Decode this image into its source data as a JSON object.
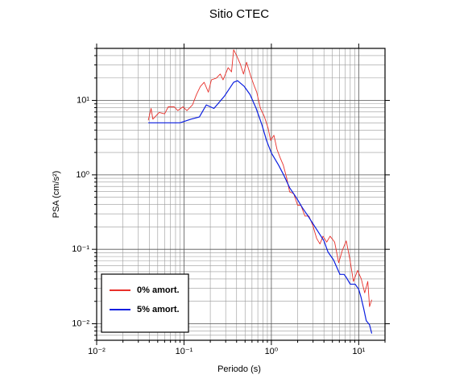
{
  "chart_data": {
    "type": "line",
    "title": "Sitio CTEC",
    "x_label": "Periodo (s)",
    "y_label": "PSA (cm/s²)",
    "xscale": "log",
    "yscale": "log",
    "grid": true,
    "legend": "lower left",
    "xlim": [
      0.01,
      20
    ],
    "ylim": [
      0.006,
      50
    ],
    "xticks": [
      {
        "value": 0.01,
        "label": "10⁻²"
      },
      {
        "value": 0.1,
        "label": "10⁻¹"
      },
      {
        "value": 1,
        "label": "10⁰"
      },
      {
        "value": 10,
        "label": "10¹"
      }
    ],
    "yticks": [
      {
        "value": 0.01,
        "label": "10⁻²"
      },
      {
        "value": 0.1,
        "label": "10⁻¹"
      },
      {
        "value": 1,
        "label": "10⁰"
      },
      {
        "value": 10,
        "label": "10¹"
      }
    ],
    "xminorticks": [
      0.02,
      0.03,
      0.04,
      0.05,
      0.06,
      0.07,
      0.08,
      0.09,
      0.2,
      0.3,
      0.4,
      0.5,
      0.6,
      0.7,
      0.8,
      0.9,
      2,
      3,
      4,
      5,
      6,
      7,
      8,
      9,
      20
    ],
    "yminorticks": [
      0.006,
      0.007,
      0.008,
      0.009,
      0.02,
      0.03,
      0.04,
      0.05,
      0.06,
      0.07,
      0.08,
      0.09,
      0.2,
      0.3,
      0.4,
      0.5,
      0.6,
      0.7,
      0.8,
      0.9,
      2,
      3,
      4,
      5,
      6,
      7,
      8,
      9,
      20,
      30,
      40,
      50
    ],
    "series": [
      {
        "name": "0% amort.",
        "color": "#e8302a",
        "x": [
          0.039,
          0.042,
          0.044,
          0.052,
          0.06,
          0.066,
          0.077,
          0.085,
          0.097,
          0.108,
          0.125,
          0.139,
          0.154,
          0.17,
          0.19,
          0.206,
          0.234,
          0.26,
          0.28,
          0.32,
          0.35,
          0.37,
          0.4,
          0.44,
          0.48,
          0.52,
          0.58,
          0.64,
          0.68,
          0.75,
          0.83,
          0.92,
          0.98,
          1.07,
          1.16,
          1.26,
          1.37,
          1.49,
          1.62,
          1.8,
          2.0,
          2.18,
          2.42,
          2.69,
          2.98,
          3.3,
          3.6,
          3.9,
          4.3,
          4.7,
          5.3,
          5.9,
          6.5,
          7.2,
          7.9,
          8.7,
          9.7,
          10.7,
          11.7,
          12.7,
          13.3,
          14.1
        ],
        "values": [
          5.4,
          7.8,
          5.6,
          6.9,
          6.6,
          8.2,
          8.2,
          7.3,
          8.2,
          7.3,
          8.7,
          12,
          15.4,
          17.5,
          12.9,
          18.9,
          19.9,
          22.6,
          18.9,
          27.5,
          24.2,
          47.9,
          40,
          31,
          22.6,
          32.6,
          21.3,
          15.4,
          12.9,
          7.8,
          6.1,
          4.2,
          2.9,
          3.4,
          2.2,
          1.7,
          1.35,
          0.93,
          0.59,
          0.56,
          0.39,
          0.39,
          0.28,
          0.28,
          0.21,
          0.14,
          0.118,
          0.15,
          0.125,
          0.15,
          0.125,
          0.066,
          0.097,
          0.13,
          0.075,
          0.037,
          0.052,
          0.04,
          0.026,
          0.037,
          0.017,
          0.021
        ]
      },
      {
        "name": "5% amort.",
        "color": "#0a1ee0",
        "x": [
          0.039,
          0.05,
          0.07,
          0.09,
          0.12,
          0.15,
          0.18,
          0.22,
          0.29,
          0.37,
          0.41,
          0.49,
          0.57,
          0.67,
          0.78,
          0.88,
          1.0,
          1.21,
          1.4,
          1.62,
          1.92,
          2.27,
          2.63,
          3.25,
          4.0,
          4.45,
          5.15,
          6.1,
          6.8,
          7.2,
          8.0,
          9.1,
          10,
          10.6,
          11.4,
          12.2,
          13.3,
          14.1
        ],
        "values": [
          5.0,
          5.0,
          5.0,
          5.0,
          5.6,
          6.0,
          8.7,
          7.8,
          11.4,
          17.5,
          18.4,
          15.4,
          12,
          7.8,
          4.7,
          2.9,
          1.97,
          1.35,
          0.97,
          0.67,
          0.5,
          0.36,
          0.28,
          0.19,
          0.13,
          0.092,
          0.072,
          0.046,
          0.046,
          0.042,
          0.034,
          0.034,
          0.029,
          0.023,
          0.016,
          0.011,
          0.0097,
          0.0074
        ]
      }
    ]
  }
}
